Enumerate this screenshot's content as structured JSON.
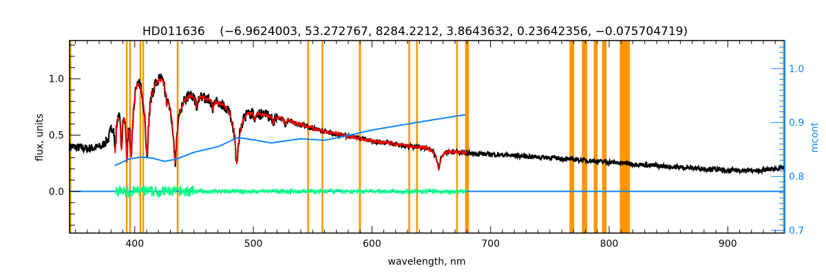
{
  "chart_data": {
    "type": "line",
    "title": "HD011636    (−6.9624003, 53.272767, 8284.2212, 3.8643632, 0.23642356, −0.075704719)",
    "xlabel": "wavelength, nm",
    "ylabel": "flux, units",
    "y2label": "mcont",
    "xlim": [
      345,
      948
    ],
    "ylim": [
      -0.37,
      1.34
    ],
    "y2lim": [
      0.695,
      1.052
    ],
    "xticks": [
      400,
      500,
      600,
      700,
      800,
      900
    ],
    "xtick_labels": [
      "400",
      "500",
      "600",
      "700",
      "800",
      "900"
    ],
    "yticks": [
      0.0,
      0.5,
      1.0
    ],
    "ytick_labels": [
      "0.0",
      "0.5",
      "1.0"
    ],
    "y2ticks": [
      0.7,
      0.8,
      0.9,
      1.0
    ],
    "y2tick_labels": [
      "0.7",
      "0.8",
      "0.9",
      "1.0"
    ],
    "colors": {
      "observed": "#000000",
      "model": "#ff0000",
      "residual": "#00ff80",
      "mcont": "#0a84ff",
      "mask": "#ff9500",
      "axis2": "#0a84ff"
    },
    "masked_regions_nm": [
      [
        345,
        346.5
      ],
      [
        392.5,
        393.8
      ],
      [
        395.3,
        396.6
      ],
      [
        404,
        405.3
      ],
      [
        406.4,
        407.7
      ],
      [
        435.4,
        436.6
      ],
      [
        545.5,
        546.6
      ],
      [
        557.5,
        558.7
      ],
      [
        589,
        590.7
      ],
      [
        630.7,
        631.9
      ],
      [
        637.2,
        638.4
      ],
      [
        671,
        672.2
      ],
      [
        678.5,
        681.8
      ],
      [
        766.5,
        770.5
      ],
      [
        777,
        781.5
      ],
      [
        787,
        790.2
      ],
      [
        794,
        797.8
      ],
      [
        809,
        817.5
      ],
      [
        946.5,
        948
      ]
    ],
    "observed_continuum": [
      [
        345,
        0.4
      ],
      [
        360,
        0.38
      ],
      [
        372,
        0.4
      ],
      [
        378,
        0.48
      ],
      [
        383,
        0.8
      ],
      [
        388,
        0.98
      ],
      [
        392,
        1.08
      ],
      [
        397,
        1.12
      ],
      [
        402,
        1.12
      ],
      [
        408,
        1.1
      ],
      [
        415,
        1.05
      ],
      [
        425,
        1.02
      ],
      [
        432,
        0.92
      ],
      [
        440,
        0.88
      ],
      [
        460,
        0.83
      ],
      [
        480,
        0.76
      ],
      [
        490,
        0.72
      ],
      [
        520,
        0.66
      ],
      [
        560,
        0.53
      ],
      [
        600,
        0.45
      ],
      [
        640,
        0.39
      ],
      [
        680,
        0.34
      ],
      [
        700,
        0.33
      ],
      [
        750,
        0.3
      ],
      [
        800,
        0.26
      ],
      [
        850,
        0.22
      ],
      [
        900,
        0.19
      ],
      [
        930,
        0.19
      ],
      [
        945,
        0.21
      ]
    ],
    "absorption_lines": [
      [
        383.5,
        0.55,
        0.8
      ],
      [
        388.9,
        0.6,
        1.0
      ],
      [
        393.4,
        0.7,
        0.7
      ],
      [
        397,
        0.7,
        1.2
      ],
      [
        410.2,
        0.7,
        1.5
      ],
      [
        434,
        0.72,
        1.6
      ],
      [
        486.1,
        0.68,
        1.4
      ],
      [
        656.3,
        0.45,
        1.2
      ],
      [
        427,
        0.15,
        0.5
      ],
      [
        452,
        0.12,
        0.5
      ],
      [
        466,
        0.1,
        0.4
      ],
      [
        501,
        0.1,
        0.4
      ],
      [
        517,
        0.12,
        0.4
      ],
      [
        527,
        0.08,
        0.4
      ],
      [
        900,
        0.06,
        2
      ],
      [
        924,
        0.06,
        2
      ]
    ],
    "model_range_nm": [
      383,
      680
    ],
    "residual_range_nm": [
      383,
      680
    ],
    "mcont": [
      [
        383,
        0.82
      ],
      [
        395,
        0.832
      ],
      [
        405,
        0.836
      ],
      [
        415,
        0.834
      ],
      [
        425,
        0.828
      ],
      [
        435,
        0.832
      ],
      [
        450,
        0.845
      ],
      [
        470,
        0.855
      ],
      [
        487,
        0.872
      ],
      [
        500,
        0.868
      ],
      [
        515,
        0.862
      ],
      [
        540,
        0.87
      ],
      [
        560,
        0.867
      ],
      [
        580,
        0.876
      ],
      [
        600,
        0.886
      ],
      [
        640,
        0.901
      ],
      [
        680,
        0.915
      ]
    ],
    "zero_line": 0.0
  }
}
